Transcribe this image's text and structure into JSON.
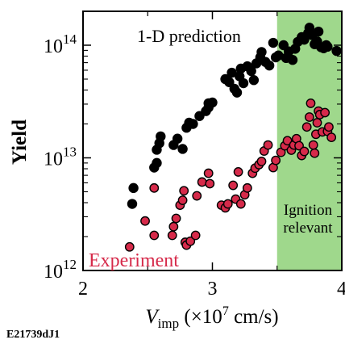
{
  "chart_data": {
    "type": "scatter",
    "xlabel_main": "V",
    "xlabel_sub": "imp",
    "xlabel_rest_pre": " (×10",
    "xlabel_sup": "7",
    "xlabel_rest_post": " cm/s)",
    "ylabel": "Yield",
    "xlim": [
      2,
      4
    ],
    "ylim": [
      1000000000000.0,
      200000000000000.0
    ],
    "yscale": "log",
    "x_tick_labels": [
      "2",
      "3",
      "4"
    ],
    "y_tick_labels": [
      {
        "base": "10",
        "exp": "12"
      },
      {
        "base": "10",
        "exp": "13"
      },
      {
        "base": "10",
        "exp": "14"
      }
    ],
    "shaded_region": {
      "x": [
        3.5,
        4
      ],
      "color": "#9fd88c",
      "label_line1": "Ignition",
      "label_line2": "relevant"
    },
    "colors": {
      "prediction": "#000000",
      "experiment": "#d62a4a",
      "shade": "#9fd88c"
    },
    "series": [
      {
        "name": "1-D prediction",
        "color": "#000000",
        "points": [
          [
            2.39,
            5400000000000.0
          ],
          [
            2.38,
            3900000000000.0
          ],
          [
            2.55,
            8200000000000.0
          ],
          [
            2.57,
            9000000000000.0
          ],
          [
            2.57,
            11800000000000.0
          ],
          [
            2.59,
            13500000000000.0
          ],
          [
            2.6,
            15500000000000.0
          ],
          [
            2.7,
            13000000000000.0
          ],
          [
            2.73,
            14800000000000.0
          ],
          [
            2.77,
            12000000000000.0
          ],
          [
            2.8,
            18500000000000.0
          ],
          [
            2.82,
            20500000000000.0
          ],
          [
            2.85,
            20000000000000.0
          ],
          [
            2.9,
            23500000000000.0
          ],
          [
            2.95,
            26000000000000.0
          ],
          [
            2.97,
            28000000000000.0
          ],
          [
            2.97,
            30500000000000.0
          ],
          [
            3.0,
            31000000000000.0
          ],
          [
            3.1,
            50000000000000.0
          ],
          [
            3.13,
            47000000000000.0
          ],
          [
            3.15,
            57000000000000.0
          ],
          [
            3.17,
            41000000000000.0
          ],
          [
            3.19,
            38000000000000.0
          ],
          [
            3.21,
            53000000000000.0
          ],
          [
            3.22,
            62000000000000.0
          ],
          [
            3.24,
            46000000000000.0
          ],
          [
            3.27,
            65000000000000.0
          ],
          [
            3.3,
            59000000000000.0
          ],
          [
            3.32,
            49000000000000.0
          ],
          [
            3.34,
            69000000000000.0
          ],
          [
            3.37,
            78000000000000.0
          ],
          [
            3.38,
            87000000000000.0
          ],
          [
            3.41,
            71000000000000.0
          ],
          [
            3.44,
            66000000000000.0
          ],
          [
            3.47,
            105000000000000.0
          ],
          [
            3.49,
            78000000000000.0
          ],
          [
            3.51,
            81000000000000.0
          ],
          [
            3.55,
            100000000000000.0
          ],
          [
            3.57,
            77000000000000.0
          ],
          [
            3.59,
            88000000000000.0
          ],
          [
            3.62,
            74000000000000.0
          ],
          [
            3.64,
            93000000000000.0
          ],
          [
            3.66,
            107000000000000.0
          ],
          [
            3.69,
            118000000000000.0
          ],
          [
            3.71,
            112000000000000.0
          ],
          [
            3.74,
            128000000000000.0
          ],
          [
            3.75,
            143000000000000.0
          ],
          [
            3.77,
            123000000000000.0
          ],
          [
            3.79,
            102000000000000.0
          ],
          [
            3.81,
            108000000000000.0
          ],
          [
            3.82,
            132000000000000.0
          ],
          [
            3.84,
            96000000000000.0
          ],
          [
            3.86,
            94000000000000.0
          ],
          [
            3.88,
            100000000000000.0
          ],
          [
            3.89,
            97000000000000.0
          ],
          [
            3.96,
            89000000000000.0
          ]
        ]
      },
      {
        "name": "Experiment",
        "color": "#d62a4a",
        "points": [
          [
            2.36,
            1620000000000.0
          ],
          [
            2.48,
            2750000000000.0
          ],
          [
            2.55,
            5400000000000.0
          ],
          [
            2.55,
            2050000000000.0
          ],
          [
            2.69,
            2050000000000.0
          ],
          [
            2.7,
            2450000000000.0
          ],
          [
            2.72,
            2900000000000.0
          ],
          [
            2.75,
            3800000000000.0
          ],
          [
            2.77,
            4200000000000.0
          ],
          [
            2.78,
            5100000000000.0
          ],
          [
            2.79,
            1780000000000.0
          ],
          [
            2.8,
            1680000000000.0
          ],
          [
            2.83,
            1820000000000.0
          ],
          [
            2.87,
            2050000000000.0
          ],
          [
            2.88,
            4600000000000.0
          ],
          [
            2.92,
            6100000000000.0
          ],
          [
            2.97,
            7300000000000.0
          ],
          [
            2.98,
            5900000000000.0
          ],
          [
            3.07,
            3800000000000.0
          ],
          [
            3.1,
            3600000000000.0
          ],
          [
            3.12,
            3900000000000.0
          ],
          [
            3.16,
            5700000000000.0
          ],
          [
            3.18,
            4300000000000.0
          ],
          [
            3.2,
            7500000000000.0
          ],
          [
            3.22,
            3900000000000.0
          ],
          [
            3.25,
            4700000000000.0
          ],
          [
            3.27,
            5400000000000.0
          ],
          [
            3.31,
            7300000000000.0
          ],
          [
            3.33,
            8100000000000.0
          ],
          [
            3.36,
            8700000000000.0
          ],
          [
            3.38,
            9300000000000.0
          ],
          [
            3.4,
            11500000000000.0
          ],
          [
            3.43,
            13000000000000.0
          ],
          [
            3.47,
            8200000000000.0
          ],
          [
            3.49,
            9500000000000.0
          ],
          [
            3.53,
            11200000000000.0
          ],
          [
            3.56,
            12800000000000.0
          ],
          [
            3.58,
            14200000000000.0
          ],
          [
            3.61,
            11700000000000.0
          ],
          [
            3.63,
            13000000000000.0
          ],
          [
            3.65,
            14800000000000.0
          ],
          [
            3.67,
            12800000000000.0
          ],
          [
            3.69,
            10500000000000.0
          ],
          [
            3.71,
            11400000000000.0
          ],
          [
            3.73,
            18800000000000.0
          ],
          [
            3.75,
            23000000000000.0
          ],
          [
            3.76,
            30500000000000.0
          ],
          [
            3.78,
            13000000000000.0
          ],
          [
            3.79,
            11000000000000.0
          ],
          [
            3.8,
            16200000000000.0
          ],
          [
            3.81,
            20500000000000.0
          ],
          [
            3.82,
            26000000000000.0
          ],
          [
            3.83,
            24200000000000.0
          ],
          [
            3.85,
            17000000000000.0
          ],
          [
            3.87,
            25200000000000.0
          ],
          [
            3.89,
            17200000000000.0
          ],
          [
            3.9,
            18800000000000.0
          ],
          [
            3.92,
            15200000000000.0
          ]
        ]
      }
    ],
    "annotations": {
      "prediction_label": "1-D prediction",
      "experiment_label": "Experiment",
      "figure_id": "E21739dJ1"
    }
  }
}
